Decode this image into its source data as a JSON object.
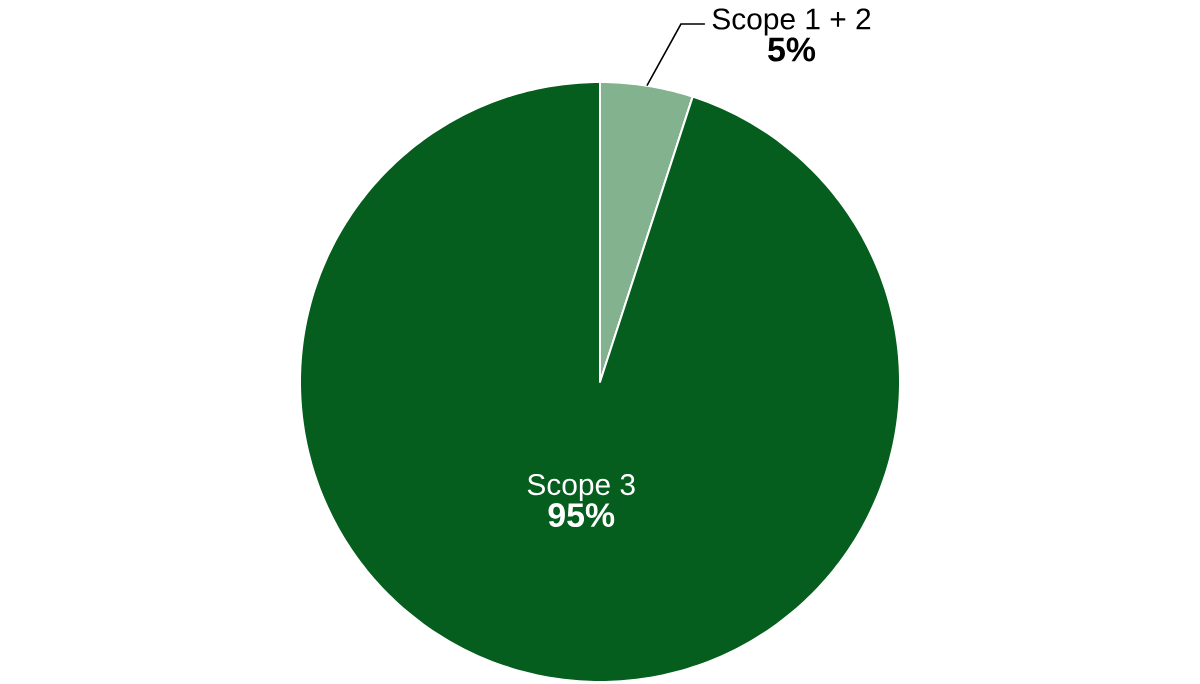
{
  "chart_data": {
    "type": "pie",
    "categories": [
      "Scope 1 + 2",
      "Scope 3"
    ],
    "values": [
      5,
      95
    ],
    "colors": [
      "#82b38e",
      "#055e1e"
    ],
    "value_labels": [
      "5%",
      "95%"
    ]
  }
}
